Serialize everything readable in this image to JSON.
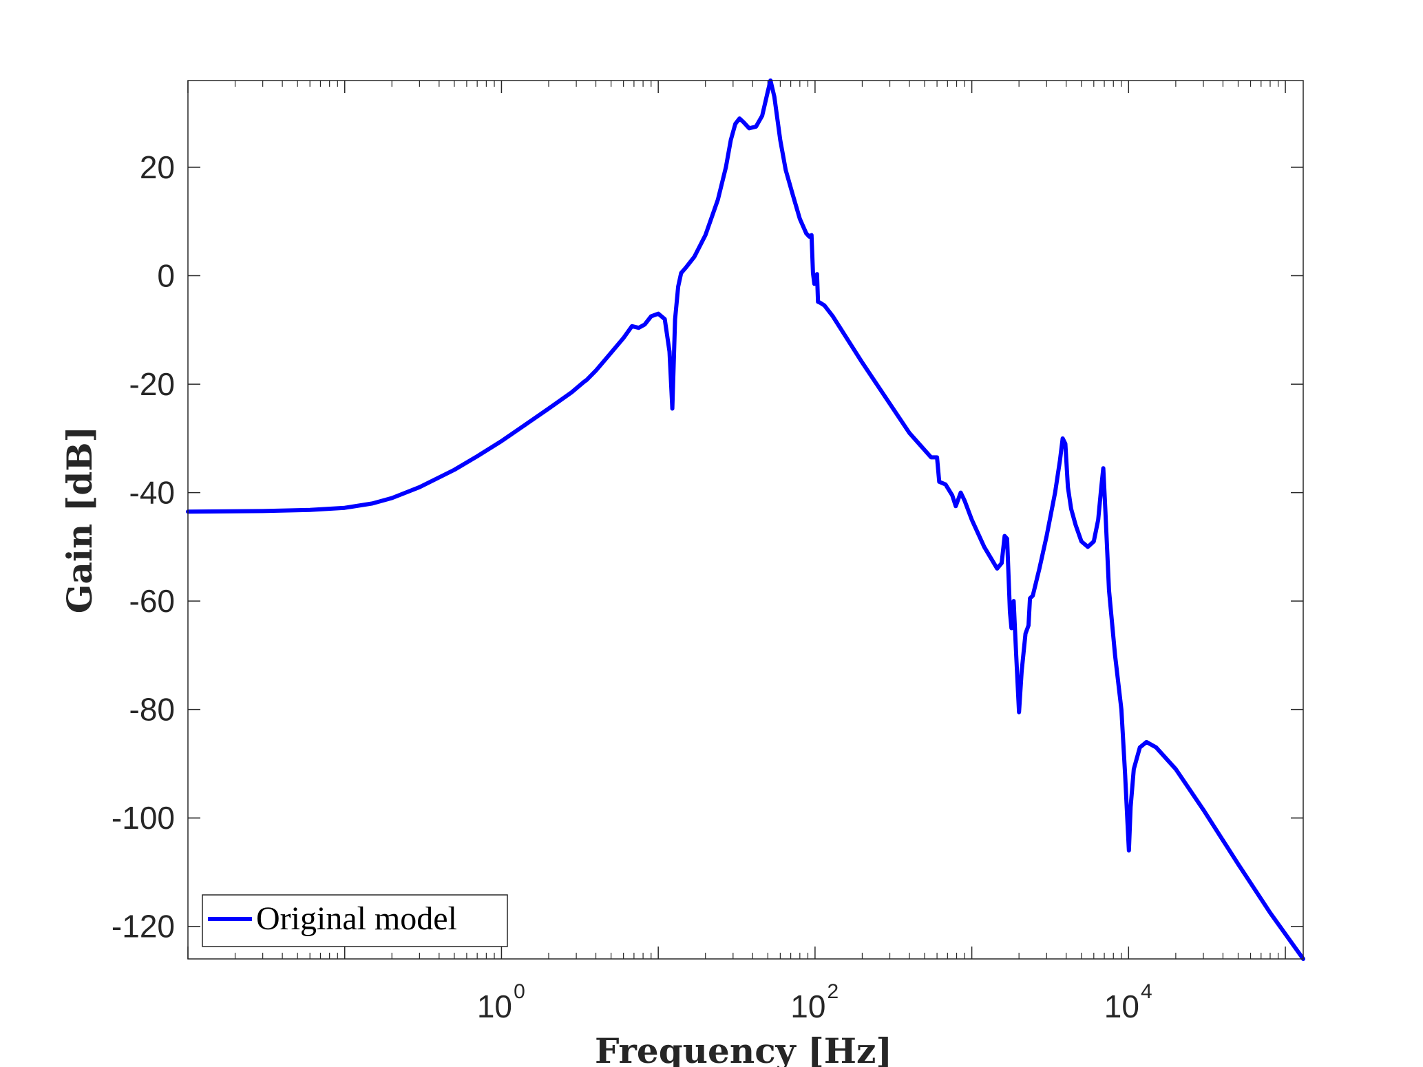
{
  "chart_data": {
    "type": "line",
    "title": "",
    "xlabel": "Frequency [Hz]",
    "ylabel": "Gain [dB]",
    "x_scale": "log",
    "xlim": [
      0.01,
      130000
    ],
    "ylim": [
      -126,
      36
    ],
    "grid": false,
    "legend_position": "bottom-left",
    "colors": {
      "series": "#0000ff",
      "axes": "#262626",
      "background": "#ffffff"
    },
    "x_ticks": [
      {
        "value": 1,
        "base": "10",
        "exp": "0"
      },
      {
        "value": 100,
        "base": "10",
        "exp": "2"
      },
      {
        "value": 10000,
        "base": "10",
        "exp": "4"
      }
    ],
    "y_ticks": [
      {
        "value": 20,
        "label": "20"
      },
      {
        "value": 0,
        "label": "0"
      },
      {
        "value": -20,
        "label": "-20"
      },
      {
        "value": -40,
        "label": "-40"
      },
      {
        "value": -60,
        "label": "-60"
      },
      {
        "value": -80,
        "label": "-80"
      },
      {
        "value": -100,
        "label": "-100"
      },
      {
        "value": -120,
        "label": "-120"
      }
    ],
    "series": [
      {
        "name": "Original model",
        "points": [
          [
            0.01,
            -43.5
          ],
          [
            0.03,
            -43.4
          ],
          [
            0.06,
            -43.2
          ],
          [
            0.1,
            -42.8
          ],
          [
            0.15,
            -42.0
          ],
          [
            0.2,
            -41.0
          ],
          [
            0.3,
            -39.0
          ],
          [
            0.5,
            -35.8
          ],
          [
            0.7,
            -33.3
          ],
          [
            1.0,
            -30.5
          ],
          [
            1.5,
            -27.0
          ],
          [
            2.0,
            -24.5
          ],
          [
            2.8,
            -21.5
          ],
          [
            3.35,
            -19.6
          ],
          [
            3.5,
            -19.2
          ],
          [
            4.0,
            -17.5
          ],
          [
            5.0,
            -14.2
          ],
          [
            6.0,
            -11.5
          ],
          [
            6.8,
            -9.3
          ],
          [
            7.5,
            -9.6
          ],
          [
            8.2,
            -9.0
          ],
          [
            9.0,
            -7.5
          ],
          [
            10.0,
            -7.0
          ],
          [
            11.0,
            -8.0
          ],
          [
            11.8,
            -14.0
          ],
          [
            12.3,
            -24.5
          ],
          [
            12.8,
            -8.0
          ],
          [
            13.4,
            -2.0
          ],
          [
            14.0,
            0.5
          ],
          [
            15.0,
            1.5
          ],
          [
            17.0,
            3.5
          ],
          [
            20.0,
            7.5
          ],
          [
            24.0,
            14.0
          ],
          [
            27.0,
            20.0
          ],
          [
            29.0,
            25.0
          ],
          [
            31.0,
            28.0
          ],
          [
            33.0,
            29.0
          ],
          [
            35.0,
            28.3
          ],
          [
            38.0,
            27.2
          ],
          [
            42.0,
            27.5
          ],
          [
            46.0,
            29.5
          ],
          [
            50.0,
            34.0
          ],
          [
            52.0,
            36.0
          ],
          [
            55.0,
            33.0
          ],
          [
            60.0,
            25.0
          ],
          [
            65.0,
            19.5
          ],
          [
            72.0,
            15.0
          ],
          [
            80.0,
            10.5
          ],
          [
            88.0,
            7.8
          ],
          [
            92.0,
            7.2
          ],
          [
            95.0,
            7.5
          ],
          [
            97.0,
            0.5
          ],
          [
            99.0,
            -1.5
          ],
          [
            101.0,
            -0.8
          ],
          [
            103.0,
            0.3
          ],
          [
            104.5,
            -4.8
          ],
          [
            108.0,
            -5.0
          ],
          [
            115.0,
            -5.5
          ],
          [
            130.0,
            -7.5
          ],
          [
            200.0,
            -16.0
          ],
          [
            400.0,
            -29.0
          ],
          [
            550.0,
            -33.5
          ],
          [
            600.0,
            -33.5
          ],
          [
            620.0,
            -38.0
          ],
          [
            680.0,
            -38.5
          ],
          [
            750.0,
            -40.5
          ],
          [
            790.0,
            -42.5
          ],
          [
            850.0,
            -40.0
          ],
          [
            900.0,
            -41.5
          ],
          [
            1000.0,
            -45.0
          ],
          [
            1200.0,
            -50.0
          ],
          [
            1450.0,
            -54.0
          ],
          [
            1550.0,
            -53.0
          ],
          [
            1620.0,
            -48.0
          ],
          [
            1680.0,
            -48.5
          ],
          [
            1750.0,
            -62.0
          ],
          [
            1790.0,
            -65.0
          ],
          [
            1850.0,
            -60.0
          ],
          [
            1920.0,
            -70.0
          ],
          [
            2000.0,
            -80.5
          ],
          [
            2080.0,
            -73.0
          ],
          [
            2200.0,
            -66.0
          ],
          [
            2300.0,
            -64.5
          ],
          [
            2350.0,
            -59.5
          ],
          [
            2450.0,
            -59.0
          ],
          [
            2700.0,
            -54.0
          ],
          [
            3000.0,
            -48.0
          ],
          [
            3400.0,
            -40.0
          ],
          [
            3650.0,
            -34.0
          ],
          [
            3800.0,
            -30.0
          ],
          [
            3950.0,
            -31.0
          ],
          [
            4100.0,
            -39.0
          ],
          [
            4300.0,
            -43.0
          ],
          [
            4600.0,
            -46.0
          ],
          [
            5000.0,
            -49.0
          ],
          [
            5500.0,
            -50.0
          ],
          [
            6000.0,
            -49.0
          ],
          [
            6400.0,
            -45.0
          ],
          [
            6700.0,
            -39.0
          ],
          [
            6900.0,
            -35.5
          ],
          [
            7100.0,
            -43.0
          ],
          [
            7500.0,
            -58.0
          ],
          [
            8200.0,
            -70.0
          ],
          [
            9000.0,
            -80.0
          ],
          [
            9500.0,
            -92.0
          ],
          [
            9850.0,
            -101.0
          ],
          [
            10050.0,
            -106.0
          ],
          [
            10300.0,
            -98.0
          ],
          [
            10800.0,
            -91.0
          ],
          [
            11800.0,
            -87.0
          ],
          [
            13000.0,
            -86.0
          ],
          [
            15000.0,
            -87.0
          ],
          [
            20000.0,
            -91.0
          ],
          [
            30000.0,
            -98.5
          ],
          [
            50000.0,
            -108.5
          ],
          [
            80000.0,
            -117.5
          ],
          [
            130000.0,
            -126.0
          ]
        ]
      }
    ]
  }
}
